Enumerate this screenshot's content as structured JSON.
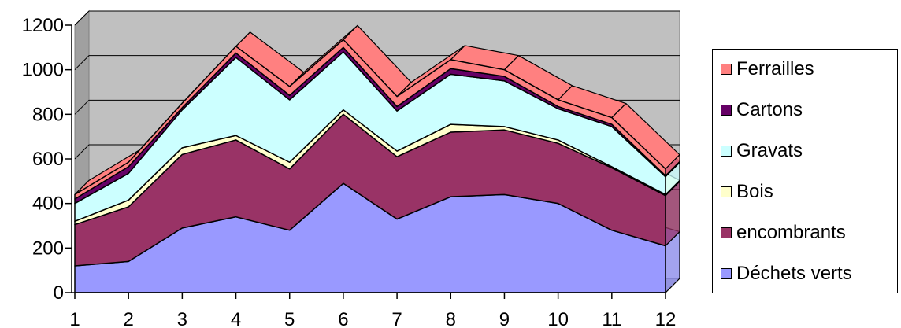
{
  "chart_data": {
    "type": "area",
    "stacked": true,
    "three_d": true,
    "title": "",
    "xlabel": "",
    "ylabel": "",
    "categories": [
      "1",
      "2",
      "3",
      "4",
      "5",
      "6",
      "7",
      "8",
      "9",
      "10",
      "11",
      "12"
    ],
    "ylim": [
      0,
      1200
    ],
    "yticks": [
      0,
      200,
      400,
      600,
      800,
      1000,
      1200
    ],
    "grid": true,
    "legend_position": "right",
    "plot_background": "#c0c0c0",
    "series": [
      {
        "name": "Déchets verts",
        "color": "#9999ff",
        "values": [
          120,
          140,
          290,
          340,
          280,
          490,
          330,
          430,
          440,
          400,
          280,
          210
        ]
      },
      {
        "name": "encombrants",
        "color": "#993366",
        "values": [
          185,
          245,
          330,
          345,
          275,
          310,
          280,
          290,
          290,
          270,
          280,
          225
        ]
      },
      {
        "name": "Bois",
        "color": "#ffffcc",
        "values": [
          15,
          30,
          30,
          20,
          30,
          20,
          25,
          35,
          15,
          15,
          5,
          5
        ]
      },
      {
        "name": "Gravats",
        "color": "#ccffff",
        "values": [
          80,
          120,
          170,
          350,
          280,
          260,
          180,
          225,
          205,
          140,
          180,
          80
        ]
      },
      {
        "name": "Cartons",
        "color": "#660066",
        "values": [
          20,
          30,
          10,
          20,
          20,
          20,
          20,
          25,
          20,
          10,
          10,
          5
        ]
      },
      {
        "name": "Ferrailles",
        "color": "#ff8080",
        "values": [
          20,
          20,
          20,
          30,
          40,
          35,
          45,
          40,
          30,
          30,
          30,
          30
        ]
      }
    ]
  }
}
